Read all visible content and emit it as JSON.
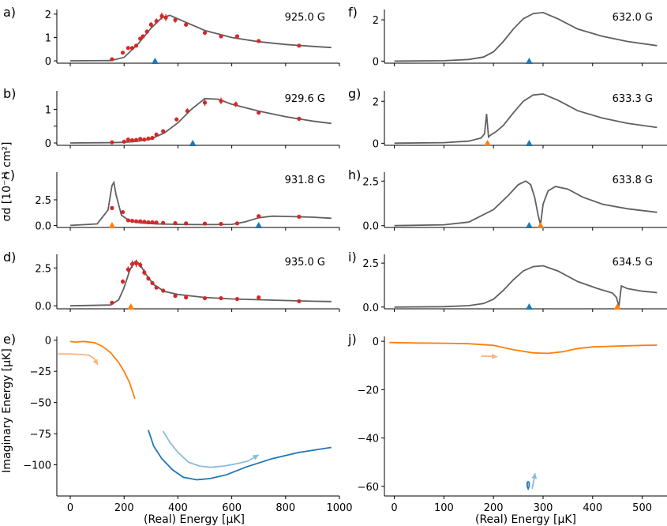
{
  "figure": {
    "ylabel_sigma": "σd [10⁻¹¹ cm²]",
    "ylabel_imag": "Imaginary Energy [μK]",
    "xlabel": "(Real) Energy [μK]"
  },
  "colors": {
    "data": "#d62728",
    "model": "#606060",
    "blue": "#1f77b4",
    "orange": "#ff7f0e",
    "light_blue": "#8bbbdb",
    "light_orange": "#f8b57c"
  },
  "chart_data": [
    {
      "panel": "a)",
      "type": "line+scatter",
      "field_label": "925.0 G",
      "xlim": [
        -50,
        1000
      ],
      "ylim": [
        -0.1,
        2.2
      ],
      "yticks": [
        0,
        1,
        2
      ],
      "tick_labels": [
        "0",
        "1",
        "2"
      ],
      "model": {
        "x": [
          0,
          150,
          200,
          250,
          300,
          340,
          370,
          420,
          500,
          600,
          700,
          800,
          900,
          970
        ],
        "y": [
          0,
          0.01,
          0.15,
          0.7,
          1.4,
          1.85,
          1.95,
          1.7,
          1.3,
          1.0,
          0.82,
          0.7,
          0.62,
          0.57
        ]
      },
      "points": {
        "x": [
          155,
          195,
          215,
          230,
          245,
          260,
          270,
          285,
          300,
          320,
          340,
          355,
          390,
          430,
          500,
          560,
          620,
          700,
          850
        ],
        "y": [
          0.07,
          0.35,
          0.55,
          0.55,
          0.65,
          0.95,
          1.05,
          1.25,
          1.55,
          1.7,
          1.92,
          1.85,
          1.75,
          1.55,
          1.2,
          1.05,
          1.05,
          0.85,
          0.65
        ],
        "err": [
          0.03,
          0.05,
          0.05,
          0.05,
          0.05,
          0.08,
          0.08,
          0.1,
          0.12,
          0.12,
          0.15,
          0.15,
          0.12,
          0.1,
          0.07,
          0.07,
          0.07,
          0.06,
          0.05
        ]
      },
      "markers": [
        {
          "x": 315,
          "color": "#1f77b4"
        }
      ]
    },
    {
      "panel": "b)",
      "type": "line+scatter",
      "field_label": "929.6 G",
      "xlim": [
        -50,
        1000
      ],
      "ylim": [
        -0.07,
        1.55
      ],
      "yticks": [
        0,
        0.5,
        1
      ],
      "tick_labels": [
        "0",
        "",
        "1"
      ],
      "model": {
        "x": [
          0,
          150,
          200,
          250,
          300,
          350,
          400,
          450,
          500,
          550,
          600,
          700,
          800,
          900,
          970
        ],
        "y": [
          0,
          0.01,
          0.02,
          0.05,
          0.12,
          0.3,
          0.6,
          1.0,
          1.32,
          1.3,
          1.15,
          0.95,
          0.78,
          0.65,
          0.58
        ]
      },
      "points": {
        "x": [
          155,
          200,
          215,
          230,
          245,
          260,
          275,
          290,
          305,
          320,
          345,
          395,
          435,
          500,
          560,
          615,
          700,
          850
        ],
        "y": [
          0.02,
          0.04,
          0.1,
          0.08,
          0.09,
          0.12,
          0.1,
          0.13,
          0.15,
          0.25,
          0.35,
          0.7,
          0.95,
          1.2,
          1.25,
          1.15,
          0.9,
          0.72
        ],
        "err": [
          0.02,
          0.02,
          0.02,
          0.02,
          0.02,
          0.02,
          0.02,
          0.03,
          0.03,
          0.04,
          0.05,
          0.06,
          0.08,
          0.1,
          0.1,
          0.08,
          0.06,
          0.05
        ]
      },
      "markers": [
        {
          "x": 455,
          "color": "#1f77b4"
        }
      ]
    },
    {
      "panel": "c)",
      "type": "line+scatter",
      "field_label": "931.8 G",
      "xlim": [
        -50,
        1000
      ],
      "ylim": [
        -0.2,
        5.2
      ],
      "yticks": [
        0,
        2.5
      ],
      "tick_labels": [
        "0.0",
        "2.5"
      ],
      "model": {
        "x": [
          0,
          100,
          140,
          155,
          162,
          170,
          190,
          220,
          260,
          320,
          400,
          500,
          600,
          650,
          700,
          750,
          800,
          900,
          970
        ],
        "y": [
          0,
          0.15,
          1.5,
          3.9,
          4.2,
          3.0,
          1.0,
          0.45,
          0.25,
          0.15,
          0.1,
          0.08,
          0.1,
          0.35,
          0.75,
          0.9,
          0.88,
          0.8,
          0.7
        ]
      },
      "points": {
        "x": [
          155,
          195,
          215,
          230,
          245,
          260,
          275,
          290,
          305,
          320,
          345,
          390,
          430,
          500,
          560,
          620,
          700,
          850
        ],
        "y": [
          1.7,
          1.3,
          0.5,
          0.45,
          0.4,
          0.4,
          0.35,
          0.3,
          0.3,
          0.28,
          0.25,
          0.22,
          0.2,
          0.18,
          0.15,
          0.2,
          0.9,
          0.85
        ],
        "err": [
          0.1,
          0.1,
          0.05,
          0.05,
          0.05,
          0.05,
          0.05,
          0.05,
          0.05,
          0.05,
          0.05,
          0.04,
          0.04,
          0.04,
          0.04,
          0.04,
          0.1,
          0.08
        ]
      },
      "markers": [
        {
          "x": 155,
          "color": "#ff7f0e"
        },
        {
          "x": 700,
          "color": "#1f77b4"
        }
      ]
    },
    {
      "panel": "d)",
      "type": "line+scatter",
      "field_label": "935.0 G",
      "xlim": [
        -50,
        1000
      ],
      "ylim": [
        -0.2,
        3.4
      ],
      "yticks": [
        0,
        2.5
      ],
      "tick_labels": [
        "0.0",
        "2.5"
      ],
      "model": {
        "x": [
          0,
          150,
          180,
          200,
          220,
          235,
          245,
          260,
          280,
          310,
          350,
          400,
          500,
          600,
          700,
          800,
          900,
          970
        ],
        "y": [
          0,
          0.05,
          0.4,
          1.2,
          2.3,
          2.85,
          2.95,
          2.7,
          2.1,
          1.4,
          0.95,
          0.75,
          0.55,
          0.45,
          0.4,
          0.35,
          0.3,
          0.28
        ]
      },
      "points": {
        "x": [
          155,
          195,
          215,
          230,
          245,
          260,
          275,
          290,
          305,
          320,
          345,
          390,
          430,
          500,
          560,
          620,
          700,
          850
        ],
        "y": [
          0.2,
          1.6,
          2.4,
          2.75,
          2.8,
          2.7,
          2.2,
          1.8,
          1.5,
          1.2,
          1.0,
          0.65,
          0.55,
          0.5,
          0.5,
          0.45,
          0.55,
          0.3
        ],
        "err": [
          0.05,
          0.15,
          0.2,
          0.25,
          0.25,
          0.2,
          0.2,
          0.15,
          0.12,
          0.1,
          0.08,
          0.06,
          0.05,
          0.04,
          0.04,
          0.04,
          0.05,
          0.03
        ]
      },
      "markers": [
        {
          "x": 225,
          "color": "#ff7f0e"
        }
      ]
    },
    {
      "panel": "f)",
      "type": "line",
      "field_label": "632.0 G",
      "xlim": [
        -20,
        550
      ],
      "ylim": [
        -0.1,
        2.5
      ],
      "yticks": [
        0,
        2
      ],
      "tick_labels": [
        "0",
        "2"
      ],
      "model": {
        "x": [
          0,
          100,
          150,
          180,
          200,
          220,
          240,
          260,
          280,
          300,
          330,
          370,
          420,
          470,
          530
        ],
        "y": [
          0,
          0.02,
          0.08,
          0.2,
          0.45,
          0.95,
          1.55,
          2.05,
          2.3,
          2.35,
          2.05,
          1.55,
          1.2,
          0.95,
          0.75
        ]
      },
      "markers": [
        {
          "x": 272,
          "color": "#1f77b4"
        }
      ]
    },
    {
      "panel": "g)",
      "type": "line",
      "field_label": "633.3 G",
      "xlim": [
        -20,
        550
      ],
      "ylim": [
        -0.1,
        2.5
      ],
      "yticks": [
        0,
        2
      ],
      "tick_labels": [
        "0",
        "2"
      ],
      "model": {
        "x": [
          0,
          100,
          150,
          175,
          182,
          186,
          190,
          195,
          205,
          220,
          240,
          260,
          280,
          300,
          330,
          370,
          420,
          470,
          530
        ],
        "y": [
          0,
          0.03,
          0.1,
          0.25,
          0.45,
          1.4,
          0.3,
          0.4,
          0.55,
          0.85,
          1.45,
          2.0,
          2.3,
          2.35,
          2.05,
          1.55,
          1.2,
          0.95,
          0.75
        ]
      },
      "markers": [
        {
          "x": 188,
          "color": "#ff7f0e"
        },
        {
          "x": 272,
          "color": "#1f77b4"
        }
      ]
    },
    {
      "panel": "h)",
      "type": "line",
      "field_label": "633.8 G",
      "xlim": [
        -20,
        550
      ],
      "ylim": [
        -0.1,
        3.0
      ],
      "yticks": [
        0,
        2.5
      ],
      "tick_labels": [
        "0.0",
        "2.5"
      ],
      "model": {
        "x": [
          0,
          100,
          150,
          200,
          230,
          250,
          265,
          275,
          283,
          290,
          295,
          300,
          310,
          325,
          350,
          380,
          420,
          470,
          530
        ],
        "y": [
          0,
          0.05,
          0.2,
          0.9,
          1.7,
          2.3,
          2.5,
          2.3,
          1.6,
          0.6,
          0.05,
          1.2,
          1.95,
          2.2,
          2.05,
          1.6,
          1.2,
          0.95,
          0.75
        ]
      },
      "markers": [
        {
          "x": 272,
          "color": "#1f77b4"
        },
        {
          "x": 295,
          "color": "#ff7f0e"
        }
      ]
    },
    {
      "panel": "i)",
      "type": "line",
      "field_label": "634.5 G",
      "xlim": [
        -20,
        550
      ],
      "ylim": [
        -0.1,
        3.0
      ],
      "yticks": [
        0,
        2.5
      ],
      "tick_labels": [
        "0.0",
        "2.5"
      ],
      "model": {
        "x": [
          0,
          100,
          150,
          180,
          200,
          220,
          240,
          260,
          280,
          300,
          330,
          370,
          410,
          440,
          448,
          453,
          458,
          470,
          500,
          530
        ],
        "y": [
          0,
          0.02,
          0.08,
          0.2,
          0.45,
          0.95,
          1.55,
          2.05,
          2.3,
          2.35,
          2.05,
          1.45,
          1.05,
          0.8,
          0.55,
          0.05,
          1.2,
          1.05,
          0.9,
          0.82
        ]
      },
      "markers": [
        {
          "x": 272,
          "color": "#1f77b4"
        },
        {
          "x": 450,
          "color": "#ff7f0e"
        }
      ]
    },
    {
      "panel": "e)",
      "type": "line",
      "xlim": [
        -50,
        1000
      ],
      "ylim": [
        -125,
        3
      ],
      "yticks": [
        0,
        -25,
        -50,
        -75,
        -100
      ],
      "tick_labels": [
        "0",
        "−25",
        "−50",
        "−75",
        "−100"
      ],
      "xticks": [
        0,
        200,
        400,
        600,
        800,
        1000
      ],
      "xtick_labels": [
        "0",
        "200",
        "400",
        "600",
        "800",
        "1000"
      ],
      "series": [
        {
          "name": "orange",
          "color": "#ff7f0e",
          "x": [
            0,
            20,
            50,
            90,
            120,
            150,
            180,
            200,
            220,
            240
          ],
          "y": [
            -1,
            -1.5,
            -1,
            -2,
            -5,
            -10,
            -18,
            -25,
            -34,
            -47
          ]
        },
        {
          "name": "blue",
          "color": "#1f77b4",
          "x": [
            290,
            310,
            340,
            380,
            420,
            470,
            520,
            580,
            650,
            750,
            850,
            970
          ],
          "y": [
            -72,
            -85,
            -95,
            -104,
            -110,
            -112,
            -111,
            -108,
            -102,
            -95,
            -90,
            -86
          ]
        },
        {
          "name": "light-blue",
          "color": "#8bbbdb",
          "x": [
            345,
            370,
            400,
            440,
            480,
            520,
            570,
            620,
            660
          ],
          "y": [
            -73,
            -82,
            -90,
            -98,
            -101,
            -102,
            -101,
            -99,
            -97
          ]
        },
        {
          "name": "light-orange",
          "color": "#f8b57c",
          "x": [
            -45,
            0,
            40,
            70,
            90
          ],
          "y": [
            -11,
            -11,
            -11.5,
            -12,
            -15
          ]
        }
      ],
      "arrows": [
        {
          "color": "#8bbbdb",
          "from": [
            660,
            -97
          ],
          "to": [
            700,
            -92
          ]
        },
        {
          "color": "#f8b57c",
          "from": [
            90,
            -15
          ],
          "to": [
            102,
            -20
          ]
        }
      ]
    },
    {
      "panel": "j)",
      "type": "line",
      "xlim": [
        -20,
        550
      ],
      "ylim": [
        -64,
        2
      ],
      "yticks": [
        0,
        -20,
        -40,
        -60
      ],
      "tick_labels": [
        "0",
        "−20",
        "−40",
        "−60"
      ],
      "xticks": [
        0,
        100,
        200,
        300,
        400,
        500
      ],
      "xtick_labels": [
        "0",
        "100",
        "200",
        "300",
        "400",
        "500"
      ],
      "series": [
        {
          "name": "orange",
          "color": "#ff7f0e",
          "x": [
            -10,
            50,
            100,
            150,
            200,
            240,
            280,
            310,
            340,
            370,
            400,
            450,
            500,
            530
          ],
          "y": [
            -0.5,
            -0.7,
            -0.8,
            -1,
            -1.7,
            -3.5,
            -4.8,
            -5,
            -4.3,
            -3,
            -2.3,
            -2,
            -1.7,
            -1.6
          ]
        },
        {
          "name": "light-orange",
          "color": "#f8b57c",
          "x": [
            175,
            195
          ],
          "y": [
            -6.1,
            -6.2
          ]
        },
        {
          "name": "blue",
          "color": "#1f77b4",
          "x": [
            270,
            268,
            268,
            270,
            272,
            272,
            270
          ],
          "y": [
            -58,
            -58.5,
            -60,
            -61,
            -60,
            -58.5,
            -58
          ]
        },
        {
          "name": "light-blue",
          "color": "#8bbbdb",
          "x": [
            278,
            280,
            282
          ],
          "y": [
            -61,
            -59,
            -57
          ]
        }
      ],
      "arrows": [
        {
          "color": "#f8b57c",
          "from": [
            195,
            -6.2
          ],
          "to": [
            208,
            -6.4
          ]
        },
        {
          "color": "#8bbbdb",
          "from": [
            282,
            -57
          ],
          "to": [
            284,
            -54.5
          ]
        }
      ]
    }
  ]
}
